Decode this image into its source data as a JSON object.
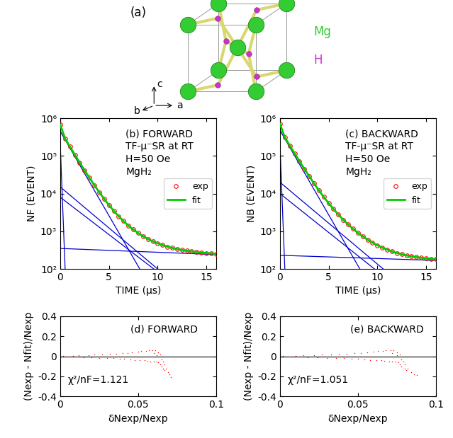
{
  "diagram": {
    "label": "(a)",
    "atoms": [
      {
        "name": "Mg",
        "color": "#33cc33"
      },
      {
        "name": "H",
        "color": "#cc33cc"
      }
    ],
    "axes": [
      "a",
      "b",
      "c"
    ]
  },
  "chart_data": [
    {
      "type": "line",
      "annotations": [
        "(b) FORWARD",
        "TF-µ⁻SR at RT",
        "H=50 Oe",
        "MgH₂"
      ],
      "xlabel": "TIME (µs)",
      "ylabel": "NF (EVENT)",
      "log": "y",
      "legend": "center right",
      "xlim": [
        0,
        16
      ],
      "xticks": [
        0,
        5,
        10,
        15
      ],
      "ylim": [
        100,
        1000000
      ],
      "yticks": [
        {
          "value": 100,
          "label": "10²"
        },
        {
          "value": 1000,
          "label": "10³"
        },
        {
          "value": 10000,
          "label": "10⁴"
        },
        {
          "value": 100000,
          "label": "10⁵"
        },
        {
          "value": 1000000,
          "label": "10⁶"
        }
      ],
      "series": [
        {
          "name": "exp",
          "type": "scatter",
          "marker": "o",
          "color": "#ff0000",
          "x": [
            0,
            0.5,
            1,
            1.5,
            2,
            2.5,
            3,
            3.5,
            4,
            4.5,
            5,
            5.5,
            6,
            6.5,
            7,
            7.5,
            8,
            8.5,
            9,
            9.5,
            10,
            10.5,
            11,
            11.5,
            12,
            12.5,
            13,
            13.5,
            14,
            14.5,
            15,
            15.5,
            16
          ],
          "values": [
            673000,
            287000,
            175000,
            107000,
            66400,
            41500,
            26200,
            16800,
            10900,
            7300,
            4970,
            3480,
            2500,
            1860,
            1410,
            1110,
            895,
            739,
            627,
            542,
            479,
            431,
            391,
            362,
            338,
            318,
            303,
            291,
            281,
            272,
            264,
            258,
            252
          ]
        },
        {
          "name": "fit",
          "type": "line",
          "line_style": "solid",
          "color": "#00cc00",
          "x": [
            0,
            0.5,
            1,
            1.5,
            2,
            2.5,
            3,
            3.5,
            4,
            4.5,
            5,
            5.5,
            6,
            6.5,
            7,
            7.5,
            8,
            8.5,
            9,
            9.5,
            10,
            10.5,
            11,
            11.5,
            12,
            12.5,
            13,
            13.5,
            14,
            14.5,
            15,
            15.5,
            16
          ],
          "values": [
            673000,
            287000,
            175000,
            107000,
            66400,
            41500,
            26200,
            16800,
            10900,
            7300,
            4970,
            3480,
            2500,
            1860,
            1410,
            1110,
            895,
            739,
            627,
            542,
            479,
            431,
            391,
            362,
            338,
            318,
            303,
            291,
            281,
            272,
            264,
            258,
            252
          ]
        },
        {
          "type": "line",
          "line_style": "solid",
          "color": "#0000cc",
          "x": [
            0,
            0.5
          ],
          "values": [
            200000,
            100
          ]
        },
        {
          "type": "line",
          "line_style": "solid",
          "color": "#0000cc",
          "x": [
            0,
            8.16
          ],
          "values": [
            450000,
            100
          ]
        },
        {
          "type": "line",
          "line_style": "solid",
          "color": "#0000cc",
          "x": [
            0,
            10
          ],
          "values": [
            15000,
            100
          ]
        },
        {
          "type": "line",
          "line_style": "solid",
          "color": "#0000cc",
          "x": [
            0,
            9.6
          ],
          "values": [
            8000,
            100
          ]
        },
        {
          "type": "line",
          "line_style": "solid",
          "color": "#0000cc",
          "x": [
            0,
            16
          ],
          "values": [
            350,
            241
          ]
        }
      ]
    },
    {
      "type": "line",
      "annotations": [
        "(c) BACKWARD",
        "TF-µ⁻SR at RT",
        "H=50 Oe",
        "MgH₂"
      ],
      "xlabel": "TIME (µs)",
      "ylabel": "NB (EVENT)",
      "log": "y",
      "legend": "center right",
      "xlim": [
        0,
        16
      ],
      "xticks": [
        0,
        5,
        10,
        15
      ],
      "ylim": [
        100,
        1000000
      ],
      "yticks": [
        {
          "value": 100,
          "label": "10²"
        },
        {
          "value": 1000,
          "label": "10³"
        },
        {
          "value": 10000,
          "label": "10⁴"
        },
        {
          "value": 100000,
          "label": "10⁵"
        },
        {
          "value": 1000000,
          "label": "10⁶"
        }
      ],
      "series": [
        {
          "name": "exp",
          "type": "scatter",
          "marker": "o",
          "color": "#ff0000",
          "x": [
            0,
            0.5,
            1,
            1.5,
            2,
            2.5,
            3,
            3.5,
            4,
            4.5,
            5,
            5.5,
            6,
            6.5,
            7,
            7.5,
            8,
            8.5,
            9,
            9.5,
            10,
            10.5,
            11,
            11.5,
            12,
            12.5,
            13,
            13.5,
            14,
            14.5,
            15,
            15.5,
            16
          ],
          "values": [
            710000,
            311000,
            190000,
            117000,
            72700,
            45500,
            29000,
            18600,
            12200,
            8100,
            5550,
            3880,
            2770,
            2020,
            1520,
            1160,
            910,
            729,
            597,
            499,
            426,
            369,
            327,
            290,
            265,
            245,
            228,
            216,
            206,
            197,
            190,
            185,
            180
          ]
        },
        {
          "name": "fit",
          "type": "line",
          "line_style": "solid",
          "color": "#00cc00",
          "x": [
            0,
            0.5,
            1,
            1.5,
            2,
            2.5,
            3,
            3.5,
            4,
            4.5,
            5,
            5.5,
            6,
            6.5,
            7,
            7.5,
            8,
            8.5,
            9,
            9.5,
            10,
            10.5,
            11,
            11.5,
            12,
            12.5,
            13,
            13.5,
            14,
            14.5,
            15,
            15.5,
            16
          ],
          "values": [
            710000,
            311000,
            190000,
            117000,
            72700,
            45500,
            29000,
            18600,
            12200,
            8100,
            5550,
            3880,
            2770,
            2020,
            1520,
            1160,
            910,
            729,
            597,
            499,
            426,
            369,
            327,
            290,
            265,
            245,
            228,
            216,
            206,
            197,
            190,
            185,
            180
          ]
        },
        {
          "type": "line",
          "line_style": "solid",
          "color": "#0000cc",
          "x": [
            0,
            0.5
          ],
          "values": [
            200000,
            100
          ]
        },
        {
          "type": "line",
          "line_style": "solid",
          "color": "#0000cc",
          "x": [
            0,
            8.2
          ],
          "values": [
            480000,
            100
          ]
        },
        {
          "type": "line",
          "line_style": "solid",
          "color": "#0000cc",
          "x": [
            0,
            10.6
          ],
          "values": [
            20000,
            100
          ]
        },
        {
          "type": "line",
          "line_style": "solid",
          "color": "#0000cc",
          "x": [
            0,
            9.7
          ],
          "values": [
            10000,
            100
          ]
        },
        {
          "type": "line",
          "line_style": "solid",
          "color": "#0000cc",
          "x": [
            0,
            16
          ],
          "values": [
            230,
            168
          ]
        }
      ]
    },
    {
      "type": "scatter",
      "annotations": [
        "(d) FORWARD"
      ],
      "note": "χ²/nF=1.121",
      "xlabel": "δNexp/Nexp",
      "ylabel": "(Nexp - Nfit)/Nexp",
      "marker": ".",
      "color": "#ff0000",
      "hline": 0,
      "xlim": [
        0,
        0.1
      ],
      "xticks": [
        0,
        0.05,
        0.1
      ],
      "ylim": [
        -0.4,
        0.4
      ],
      "yticks": [
        -0.4,
        -0.2,
        0,
        0.2,
        0.4
      ],
      "x": [
        0.002,
        0.005,
        0.008,
        0.01,
        0.012,
        0.015,
        0.018,
        0.02,
        0.022,
        0.025,
        0.027,
        0.03,
        0.032,
        0.034,
        0.036,
        0.038,
        0.04,
        0.041,
        0.043,
        0.045,
        0.046,
        0.048,
        0.05,
        0.051,
        0.052,
        0.054,
        0.055,
        0.056,
        0.057,
        0.058,
        0.059,
        0.06,
        0.06,
        0.061,
        0.062,
        0.062,
        0.063,
        0.063,
        0.064,
        0.064,
        0.065,
        0.065,
        0.066,
        0.066,
        0.067,
        0.067,
        0.068,
        0.069,
        0.07,
        0.071
      ],
      "values": [
        0.001,
        -0.003,
        0.005,
        -0.006,
        0.008,
        -0.01,
        0.012,
        -0.008,
        0.015,
        -0.014,
        0.02,
        -0.016,
        0.022,
        -0.02,
        0.025,
        -0.024,
        0.03,
        -0.022,
        0.035,
        -0.03,
        0.04,
        -0.035,
        0.045,
        -0.038,
        0.05,
        -0.04,
        0.055,
        -0.045,
        0.058,
        -0.05,
        0.06,
        -0.055,
        0.03,
        0.062,
        -0.05,
        0.01,
        0.04,
        -0.06,
        0.02,
        -0.08,
        -0.03,
        -0.1,
        -0.05,
        -0.12,
        -0.08,
        -0.14,
        -0.12,
        -0.16,
        -0.18,
        -0.21
      ]
    },
    {
      "type": "scatter",
      "annotations": [
        "(e) BACKWARD"
      ],
      "note": "χ²/nF=1.051",
      "xlabel": "δNexp/Nexp",
      "ylabel": "(Nexp - Nfit)/Nexp",
      "marker": ".",
      "color": "#ff0000",
      "hline": 0,
      "xlim": [
        0,
        0.1
      ],
      "xticks": [
        0,
        0.05,
        0.1
      ],
      "ylim": [
        -0.4,
        0.4
      ],
      "yticks": [
        -0.4,
        -0.2,
        0,
        0.2,
        0.4
      ],
      "x": [
        0.002,
        0.006,
        0.01,
        0.012,
        0.015,
        0.018,
        0.022,
        0.024,
        0.027,
        0.03,
        0.033,
        0.036,
        0.038,
        0.041,
        0.043,
        0.046,
        0.048,
        0.05,
        0.052,
        0.054,
        0.056,
        0.058,
        0.06,
        0.062,
        0.063,
        0.065,
        0.066,
        0.067,
        0.068,
        0.07,
        0.071,
        0.072,
        0.072,
        0.073,
        0.074,
        0.075,
        0.075,
        0.076,
        0.077,
        0.077,
        0.078,
        0.078,
        0.079,
        0.08,
        0.08,
        0.081,
        0.082,
        0.084,
        0.086,
        0.088
      ],
      "values": [
        0.001,
        -0.003,
        0.005,
        -0.006,
        0.008,
        -0.01,
        0.012,
        -0.008,
        0.015,
        -0.014,
        0.02,
        -0.016,
        0.022,
        -0.02,
        0.025,
        -0.024,
        0.03,
        -0.022,
        0.035,
        -0.03,
        0.04,
        -0.04,
        0.045,
        -0.038,
        0.05,
        -0.04,
        0.055,
        -0.045,
        0.058,
        -0.05,
        0.06,
        -0.055,
        0.03,
        0.062,
        -0.05,
        0.01,
        0.04,
        -0.06,
        0.02,
        -0.08,
        -0.03,
        -0.1,
        -0.05,
        -0.12,
        -0.08,
        -0.14,
        -0.12,
        -0.16,
        -0.18,
        -0.19
      ]
    }
  ]
}
